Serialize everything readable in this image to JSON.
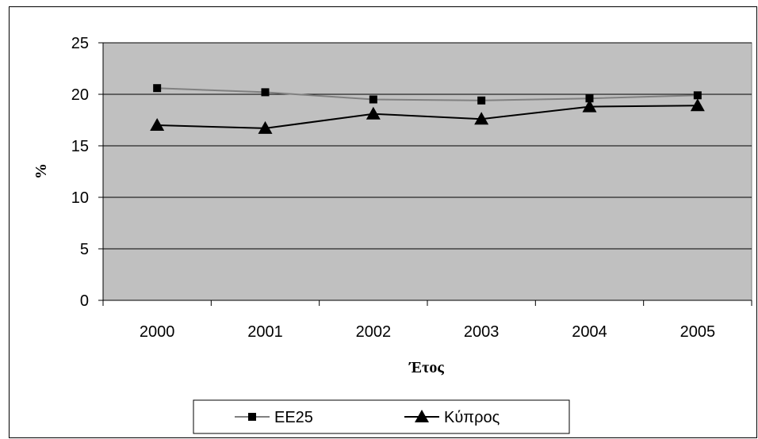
{
  "chart_data": {
    "type": "line",
    "categories": [
      "2000",
      "2001",
      "2002",
      "2003",
      "2004",
      "2005"
    ],
    "series": [
      {
        "name": "ΕΕ25",
        "values": [
          20.6,
          20.2,
          19.5,
          19.4,
          19.6,
          19.9
        ],
        "color": "#808080",
        "marker": "square"
      },
      {
        "name": "Κύπρος",
        "values": [
          17.0,
          16.7,
          18.1,
          17.6,
          18.8,
          18.9
        ],
        "color": "#000000",
        "marker": "triangle"
      }
    ],
    "xlabel": "Έτος",
    "ylabel": "%",
    "ylim": [
      0,
      25
    ],
    "yticks": [
      "0",
      "5",
      "10",
      "15",
      "20",
      "25"
    ],
    "plot_background": "#c0c0c0",
    "grid": true,
    "legend_position": "bottom"
  }
}
